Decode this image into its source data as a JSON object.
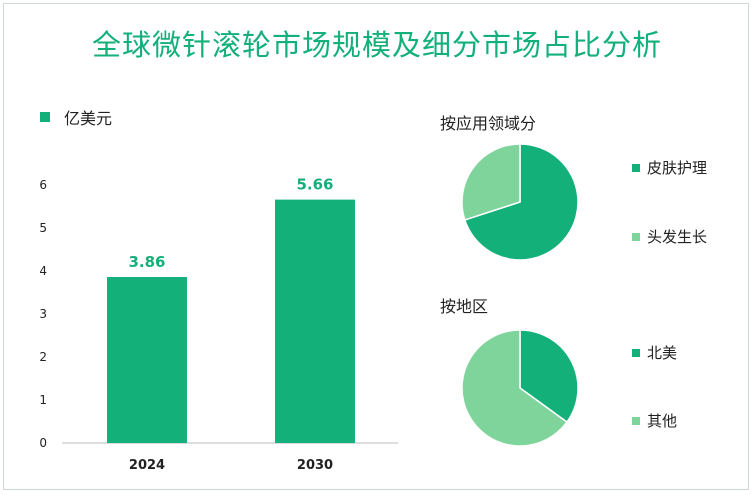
{
  "title": "全球微针滚轮市场规模及细分市场占比分析",
  "colors": {
    "primary": "#14b07a",
    "secondary": "#7fd49c"
  },
  "chart_data": [
    {
      "type": "bar",
      "legend_label": "亿美元",
      "categories": [
        "2024",
        "2030"
      ],
      "values": [
        3.86,
        5.66
      ],
      "value_labels": [
        "3.86",
        "5.66"
      ],
      "ylim": [
        0,
        6
      ],
      "yticks": [
        "0",
        "1",
        "2",
        "3",
        "4",
        "5",
        "6"
      ],
      "xlabel": "",
      "ylabel": ""
    },
    {
      "type": "pie",
      "title": "按应用领域分",
      "labels": [
        "皮肤护理",
        "头发生长"
      ],
      "values": [
        70,
        30
      ],
      "colors": [
        "#14b07a",
        "#7fd49c"
      ]
    },
    {
      "type": "pie",
      "title": "按地区",
      "labels": [
        "北美",
        "其他"
      ],
      "values": [
        35,
        65
      ],
      "colors": [
        "#14b07a",
        "#7fd49c"
      ]
    }
  ]
}
